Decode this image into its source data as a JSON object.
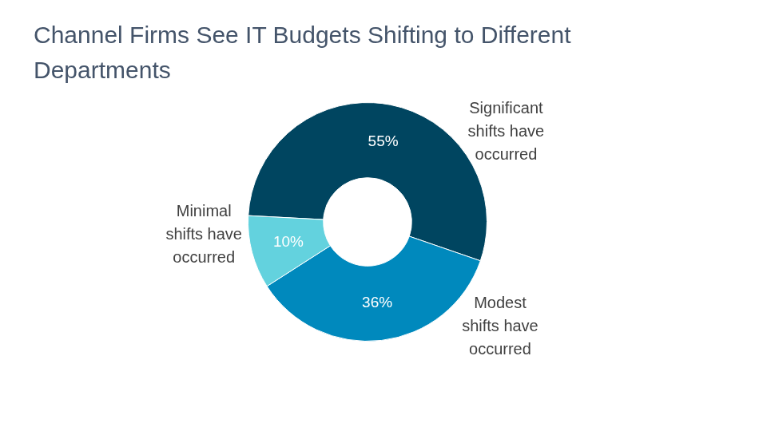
{
  "chart_data": {
    "type": "doughnut",
    "title": "Channel Firms See IT Budgets Shifting to Different Departments",
    "categories": [
      "Significant shifts have occurred",
      "Modest shifts have occurred",
      "Minimal shifts have occurred"
    ],
    "values": [
      55,
      36,
      10
    ],
    "value_labels": [
      "55%",
      "36%",
      "10%"
    ],
    "colors": [
      "#004560",
      "#0089bd",
      "#63d2de"
    ],
    "data_labels": true,
    "legend": false
  }
}
